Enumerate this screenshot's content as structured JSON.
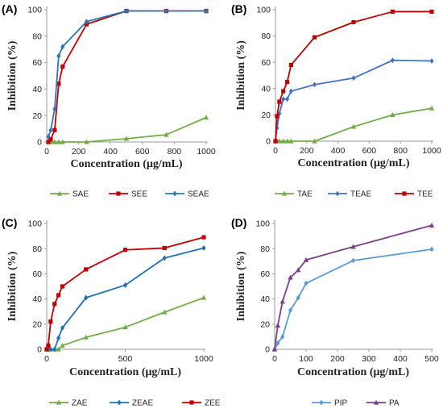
{
  "chart_data": [
    {
      "label": "(A)",
      "type": "line",
      "xlabel": "Concentration (μg/mL)",
      "ylabel": "Inhibition (%)",
      "xlim": [
        0,
        1000
      ],
      "ylim": [
        0,
        100
      ],
      "xticks": [
        0,
        200,
        400,
        600,
        800,
        1000
      ],
      "yticks": [
        0,
        20,
        40,
        60,
        80,
        100
      ],
      "grid": false,
      "legend": "bottom",
      "series": [
        {
          "name": "SAE",
          "color": "#70ad47",
          "marker": "triangle",
          "x": [
            10,
            25,
            50,
            75,
            100,
            250,
            500,
            750,
            1000
          ],
          "y": [
            0,
            0,
            0,
            0,
            0,
            0,
            2.5,
            5.5,
            18.5
          ]
        },
        {
          "name": "SEE",
          "color": "#c00000",
          "marker": "square",
          "x": [
            10,
            25,
            50,
            75,
            100,
            250,
            500,
            750,
            1000
          ],
          "y": [
            0,
            2,
            9,
            44,
            57,
            89,
            99,
            99,
            99
          ]
        },
        {
          "name": "SEAE",
          "color": "#2e75b6",
          "marker": "diamond",
          "x": [
            10,
            25,
            50,
            75,
            100,
            250,
            500,
            750,
            1000
          ],
          "y": [
            4,
            9,
            25,
            65,
            72,
            91,
            99,
            99,
            99
          ]
        }
      ]
    },
    {
      "label": "(B)",
      "type": "line",
      "xlabel": "Concentration (μg/mL)",
      "ylabel": "Inhibition (%)",
      "xlim": [
        0,
        1000
      ],
      "ylim": [
        0,
        100
      ],
      "xticks": [
        0,
        200,
        400,
        600,
        800,
        1000
      ],
      "yticks": [
        0,
        20,
        40,
        60,
        80,
        100
      ],
      "grid": false,
      "legend": "bottom",
      "series": [
        {
          "name": "TAE",
          "color": "#70ad47",
          "marker": "triangle",
          "x": [
            0,
            10,
            25,
            50,
            75,
            100,
            250,
            500,
            750,
            1000
          ],
          "y": [
            0,
            0,
            0,
            0,
            0,
            0,
            0,
            11,
            20,
            25
          ]
        },
        {
          "name": "TEAE",
          "color": "#4472c4",
          "marker": "diamond",
          "x": [
            0,
            10,
            25,
            50,
            75,
            100,
            250,
            500,
            750,
            1000
          ],
          "y": [
            0,
            10,
            21,
            32,
            32,
            38,
            43,
            48,
            61.5,
            61
          ]
        },
        {
          "name": "TEE",
          "color": "#c00000",
          "marker": "square",
          "x": [
            0,
            10,
            25,
            50,
            75,
            100,
            250,
            500,
            750,
            1000
          ],
          "y": [
            0,
            19,
            30,
            38,
            45,
            58,
            79,
            90.5,
            98.5,
            98.5
          ]
        }
      ]
    },
    {
      "label": "(C)",
      "type": "line",
      "xlabel": "Concentration (μg/mL)",
      "ylabel": "Inhibition (%)",
      "xlim": [
        0,
        1000
      ],
      "ylim": [
        0,
        100
      ],
      "xticks": [
        0,
        500,
        1000
      ],
      "yticks": [
        0,
        20,
        40,
        60,
        80,
        100
      ],
      "grid": false,
      "legend": "bottom",
      "series": [
        {
          "name": "ZAE",
          "color": "#70ad47",
          "marker": "triangle",
          "x": [
            0,
            10,
            25,
            50,
            75,
            100,
            250,
            500,
            750,
            1000
          ],
          "y": [
            0,
            0,
            0,
            0,
            0,
            3,
            9.5,
            17.5,
            29.5,
            41
          ]
        },
        {
          "name": "ZEAE",
          "color": "#1f6fb5",
          "marker": "diamond",
          "x": [
            0,
            10,
            25,
            50,
            75,
            100,
            250,
            500,
            750,
            1000
          ],
          "y": [
            0,
            0,
            0,
            0,
            9,
            17,
            41,
            51,
            72.5,
            80.5
          ]
        },
        {
          "name": "ZEE",
          "color": "#c00000",
          "marker": "square",
          "x": [
            0,
            10,
            25,
            50,
            75,
            100,
            250,
            500,
            750,
            1000
          ],
          "y": [
            0,
            3,
            22,
            36,
            43,
            50,
            63.5,
            79,
            80.5,
            89
          ]
        }
      ]
    },
    {
      "label": "(D)",
      "type": "line",
      "xlabel": "Concentration (μg/mL)",
      "ylabel": "Inhibition (%)",
      "xlim": [
        0,
        500
      ],
      "ylim": [
        0,
        100
      ],
      "xticks": [
        0,
        100,
        200,
        300,
        400,
        500
      ],
      "yticks": [
        0,
        20,
        40,
        60,
        80,
        100
      ],
      "grid": false,
      "legend": "bottom",
      "series": [
        {
          "name": "PIP",
          "color": "#5b9bd5",
          "marker": "diamond",
          "x": [
            0,
            10,
            25,
            50,
            75,
            100,
            250,
            500
          ],
          "y": [
            0,
            5,
            10,
            31,
            41,
            52.5,
            70.5,
            79.5
          ]
        },
        {
          "name": "PA",
          "color": "#7b3f8c",
          "marker": "triangle",
          "x": [
            0,
            10,
            25,
            50,
            75,
            100,
            250,
            500
          ],
          "y": [
            0,
            19,
            38,
            57,
            63,
            71,
            81.5,
            98.5
          ]
        }
      ]
    }
  ]
}
